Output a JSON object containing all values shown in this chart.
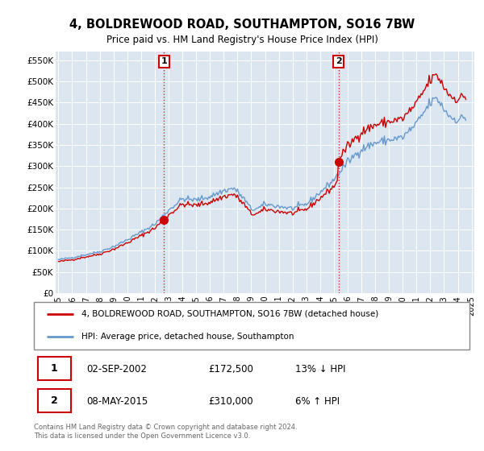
{
  "title": "4, BOLDREWOOD ROAD, SOUTHAMPTON, SO16 7BW",
  "subtitle": "Price paid vs. HM Land Registry's House Price Index (HPI)",
  "footer": "Contains HM Land Registry data © Crown copyright and database right 2024.\nThis data is licensed under the Open Government Licence v3.0.",
  "legend_line1": "4, BOLDREWOOD ROAD, SOUTHAMPTON, SO16 7BW (detached house)",
  "legend_line2": "HPI: Average price, detached house, Southampton",
  "annotation1_date": "02-SEP-2002",
  "annotation1_price": "£172,500",
  "annotation1_hpi": "13% ↓ HPI",
  "annotation2_date": "08-MAY-2015",
  "annotation2_price": "£310,000",
  "annotation2_hpi": "6% ↑ HPI",
  "red_color": "#cc0000",
  "blue_color": "#6699cc",
  "blue_fill_color": "#dce6f1",
  "grid_color": "#cccccc",
  "vline_color": "#cc0000",
  "ylim": [
    0,
    570000
  ],
  "ytick_labels": [
    "£0",
    "£50K",
    "£100K",
    "£150K",
    "£200K",
    "£250K",
    "£300K",
    "£350K",
    "£400K",
    "£450K",
    "£500K",
    "£550K"
  ],
  "sale1_year": 2002.667,
  "sale1_price": 172500,
  "sale2_year": 2015.333,
  "sale2_price": 310000,
  "xlim_left": 1994.8,
  "xlim_right": 2025.2
}
